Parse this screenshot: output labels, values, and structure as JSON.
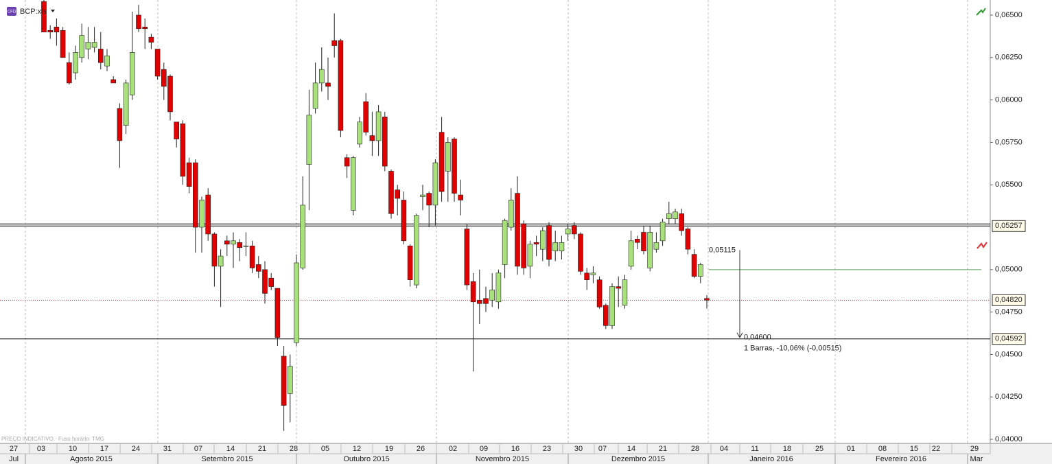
{
  "chart_data": {
    "type": "candlestick",
    "symbol": "BCP:xls",
    "symbol_badge": "CFD",
    "footnote": "PREÇO INDICATIVO · Fuso horário: TMG",
    "candles": {
      "open": [
        0.0658,
        0.0641,
        0.0643,
        0.0641,
        0.0622,
        0.0616,
        0.0625,
        0.063,
        0.0631,
        0.063,
        0.062,
        0.0612,
        0.0595,
        0.0585,
        0.0603,
        0.065,
        0.0643,
        0.0637,
        0.063,
        0.0618,
        0.0614,
        0.0587,
        0.0586,
        0.0563,
        0.0563,
        0.0525,
        0.0544,
        0.0521,
        0.0502,
        0.0517,
        0.0515,
        0.0516,
        0.0514,
        0.0514,
        0.0503,
        0.05,
        0.0495,
        0.0489,
        0.0449,
        0.0427,
        0.0457,
        0.0501,
        0.0562,
        0.0595,
        0.061,
        0.061,
        0.0635,
        0.0635,
        0.0566,
        0.0535,
        0.0574,
        0.0599,
        0.0579,
        0.0576,
        0.059,
        0.0558,
        0.0547,
        0.0541,
        0.0514,
        0.0491,
        0.0543,
        0.0545,
        0.0538,
        0.0581,
        0.0558,
        0.0577,
        0.0544,
        0.0524,
        0.0493,
        0.0482,
        0.0483,
        0.0482,
        0.0481,
        0.0503,
        0.0525,
        0.0545,
        0.0527,
        0.0502,
        0.0516,
        0.0512,
        0.0526,
        0.0511,
        0.0511,
        0.0521,
        0.0526,
        0.0521,
        0.0498,
        0.0497,
        0.0494,
        0.0479,
        0.0467,
        0.049,
        0.0479,
        0.0502,
        0.0518,
        0.0522,
        0.0501,
        0.0512,
        0.0517,
        0.053,
        0.053,
        0.0533,
        0.0524,
        0.0509,
        0.0496,
        0.0483
      ],
      "high": [
        0.066,
        0.0644,
        0.0648,
        0.0643,
        0.0628,
        0.0632,
        0.0645,
        0.0643,
        0.0643,
        0.064,
        0.063,
        0.0614,
        0.0598,
        0.0612,
        0.0652,
        0.0656,
        0.0648,
        0.0639,
        0.063,
        0.0622,
        0.0615,
        0.0587,
        0.0588,
        0.0566,
        0.0565,
        0.0543,
        0.0548,
        0.0522,
        0.0512,
        0.052,
        0.0522,
        0.0518,
        0.0522,
        0.0517,
        0.0508,
        0.0505,
        0.0498,
        0.0489,
        0.0455,
        0.045,
        0.0509,
        0.0555,
        0.0606,
        0.0622,
        0.0631,
        0.0625,
        0.0651,
        0.0636,
        0.0568,
        0.0567,
        0.059,
        0.0604,
        0.0593,
        0.0597,
        0.0593,
        0.0559,
        0.055,
        0.0546,
        0.0515,
        0.0533,
        0.055,
        0.0546,
        0.0565,
        0.059,
        0.0578,
        0.0578,
        0.0553,
        0.0527,
        0.0498,
        0.05,
        0.049,
        0.0498,
        0.05,
        0.053,
        0.0548,
        0.0555,
        0.0529,
        0.0517,
        0.052,
        0.0525,
        0.0528,
        0.0523,
        0.052,
        0.0527,
        0.0528,
        0.0522,
        0.0501,
        0.0502,
        0.0496,
        0.048,
        0.0492,
        0.0496,
        0.0497,
        0.0523,
        0.052,
        0.0526,
        0.0526,
        0.0522,
        0.053,
        0.054,
        0.0536,
        0.0536,
        0.0525,
        0.0512,
        0.0504,
        0.0485
      ],
      "low": [
        0.064,
        0.0636,
        0.0632,
        0.0625,
        0.0609,
        0.0612,
        0.0622,
        0.0624,
        0.0628,
        0.0618,
        0.0617,
        0.061,
        0.056,
        0.058,
        0.06,
        0.064,
        0.063,
        0.063,
        0.0612,
        0.06,
        0.0588,
        0.0572,
        0.055,
        0.0545,
        0.051,
        0.051,
        0.0517,
        0.049,
        0.0478,
        0.0508,
        0.0501,
        0.0505,
        0.0508,
        0.0498,
        0.0495,
        0.048,
        0.0488,
        0.0455,
        0.0405,
        0.041,
        0.0455,
        0.05,
        0.0535,
        0.0592,
        0.0605,
        0.06,
        0.0625,
        0.0578,
        0.0554,
        0.0532,
        0.0572,
        0.0579,
        0.0567,
        0.0567,
        0.0558,
        0.053,
        0.0532,
        0.0515,
        0.049,
        0.0489,
        0.0535,
        0.0525,
        0.0526,
        0.054,
        0.054,
        0.054,
        0.0532,
        0.0488,
        0.044,
        0.0468,
        0.0475,
        0.0478,
        0.0477,
        0.0495,
        0.0523,
        0.0497,
        0.0497,
        0.0495,
        0.0508,
        0.0505,
        0.0502,
        0.0505,
        0.0506,
        0.0517,
        0.0518,
        0.0497,
        0.0488,
        0.0492,
        0.0477,
        0.0465,
        0.0465,
        0.0478,
        0.0477,
        0.05,
        0.0512,
        0.0509,
        0.0499,
        0.051,
        0.0514,
        0.0527,
        0.0527,
        0.052,
        0.0509,
        0.0495,
        0.0492,
        0.0477
      ],
      "close": [
        0.064,
        0.064,
        0.064,
        0.0625,
        0.061,
        0.0628,
        0.0638,
        0.0634,
        0.0634,
        0.0622,
        0.0626,
        0.061,
        0.0576,
        0.061,
        0.0628,
        0.0642,
        0.0642,
        0.0634,
        0.0614,
        0.0608,
        0.0593,
        0.0577,
        0.0555,
        0.0549,
        0.0525,
        0.0541,
        0.0521,
        0.0502,
        0.0508,
        0.0515,
        0.0517,
        0.0513,
        0.0514,
        0.0501,
        0.0499,
        0.0486,
        0.049,
        0.046,
        0.042,
        0.0443,
        0.0504,
        0.0538,
        0.0591,
        0.061,
        0.0618,
        0.0608,
        0.0632,
        0.0582,
        0.0561,
        0.0566,
        0.0587,
        0.0581,
        0.0576,
        0.0593,
        0.0561,
        0.0533,
        0.0542,
        0.0517,
        0.0494,
        0.0532,
        0.0544,
        0.0538,
        0.0563,
        0.0546,
        0.0575,
        0.0545,
        0.0541,
        0.0491,
        0.0481,
        0.048,
        0.048,
        0.0488,
        0.0498,
        0.0529,
        0.0541,
        0.0502,
        0.0501,
        0.0515,
        0.0515,
        0.0523,
        0.0506,
        0.0516,
        0.0516,
        0.0524,
        0.0521,
        0.0499,
        0.0494,
        0.0498,
        0.0478,
        0.0467,
        0.049,
        0.0489,
        0.0494,
        0.0517,
        0.0516,
        0.0511,
        0.0522,
        0.0516,
        0.0528,
        0.0533,
        0.0534,
        0.0523,
        0.0512,
        0.0496,
        0.0503,
        0.0482
      ]
    },
    "up_color": "#a8e07c",
    "down_color": "#e00000",
    "ylim": [
      0.03976,
      0.06589
    ],
    "yticks": [
      {
        "value": 0.065,
        "label": "0,06500"
      },
      {
        "value": 0.0625,
        "label": "0,06250"
      },
      {
        "value": 0.06,
        "label": "0,06000"
      },
      {
        "value": 0.0575,
        "label": "0,05750"
      },
      {
        "value": 0.055,
        "label": "0,05500"
      },
      {
        "value": 0.05,
        "label": "0,05000"
      },
      {
        "value": 0.0475,
        "label": "0,04750"
      },
      {
        "value": 0.045,
        "label": "0,04500"
      },
      {
        "value": 0.0425,
        "label": "0,04250"
      },
      {
        "value": 0.04,
        "label": "0,04000"
      }
    ],
    "levels": [
      {
        "value": 0.05257,
        "label": "0,05257"
      },
      {
        "value": 0.0482,
        "label": "0,04820"
      },
      {
        "value": 0.04592,
        "label": "0,04592"
      }
    ],
    "alert_line": 0.05,
    "measure": {
      "from": {
        "value": 0.05115,
        "label": "0,05115"
      },
      "to": {
        "value": 0.046,
        "label": "0,04600"
      },
      "text": "1 Barras, -10,06% (-0,00515)"
    },
    "day_labels": [
      "27",
      "03",
      "10",
      "17",
      "24",
      "31",
      "07",
      "14",
      "21",
      "28",
      "05",
      "12",
      "19",
      "26",
      "02",
      "09",
      "16",
      "23",
      "30",
      "07",
      "14",
      "21",
      "28",
      "04",
      "11",
      "18",
      "25",
      "01",
      "08",
      "15",
      "22",
      "29"
    ],
    "month_labels": [
      "Jul",
      "Agosto 2015",
      "Setembro 2015",
      "Outubro 2015",
      "Novembro 2015",
      "Dezembro 2015",
      "Janeiro 2016",
      "Fevereiro 2016",
      "Mar"
    ]
  }
}
